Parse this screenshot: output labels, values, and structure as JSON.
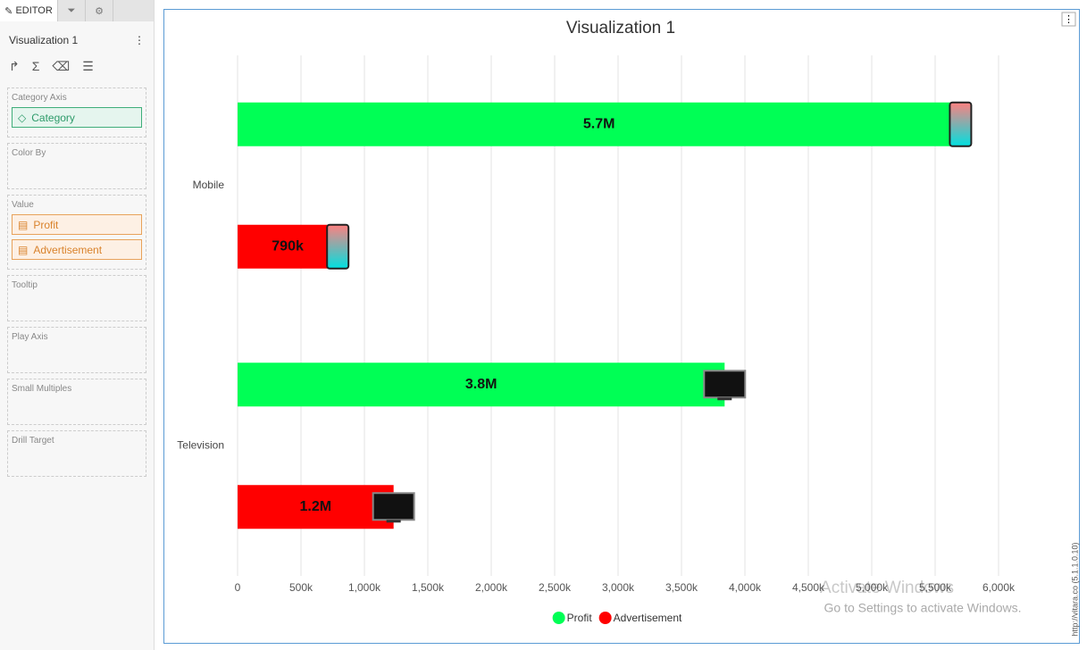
{
  "editor": {
    "tab": "EDITOR",
    "title": "Visualization 1",
    "sections": [
      {
        "label": "Category Axis",
        "kind": "category",
        "items": [
          "Category"
        ]
      },
      {
        "label": "Color By"
      },
      {
        "label": "Value",
        "kind": "value",
        "items": [
          "Profit",
          "Advertisement"
        ]
      },
      {
        "label": "Tooltip"
      },
      {
        "label": "Play Axis"
      },
      {
        "label": "Small Multiples"
      },
      {
        "label": "Drill Target"
      }
    ]
  },
  "chart_data": {
    "type": "hbar",
    "title": "Visualization 1",
    "categories": [
      "Mobile",
      "Television"
    ],
    "series": [
      {
        "name": "Profit",
        "color": "#00ff55",
        "values": [
          5700000,
          3840000
        ],
        "value_labels": [
          "5.7M",
          "3.8M"
        ]
      },
      {
        "name": "Advertisement",
        "color": "#ff0000",
        "values": [
          790000,
          1230000
        ],
        "value_labels": [
          "790k",
          "1.2M"
        ]
      }
    ],
    "xlim": [
      0,
      6000000
    ],
    "xticks": [
      0,
      {
        "value": 500000,
        "label": "500k"
      },
      {
        "value": 1000000,
        "label": "1,000k"
      },
      {
        "value": 1500000,
        "label": "1,500k"
      },
      {
        "value": 2000000,
        "label": "2,000k"
      },
      {
        "value": 2500000,
        "label": "2,500k"
      },
      {
        "value": 3000000,
        "label": "3,000k"
      },
      {
        "value": 3500000,
        "label": "3,500k"
      },
      {
        "value": 4000000,
        "label": "4,000k"
      },
      {
        "value": 4500000,
        "label": "4,500k"
      },
      {
        "value": 5000000,
        "label": "5,000k"
      },
      {
        "value": 5500000,
        "label": "5,500k"
      },
      {
        "value": 6000000,
        "label": "6,000k"
      }
    ],
    "grid": true,
    "legend": "bottom"
  },
  "watermark": {
    "line1": "Activate Windows",
    "line2": "Go to Settings to activate Windows."
  },
  "version": "http://vitara.co (5.1.1.0.10)"
}
